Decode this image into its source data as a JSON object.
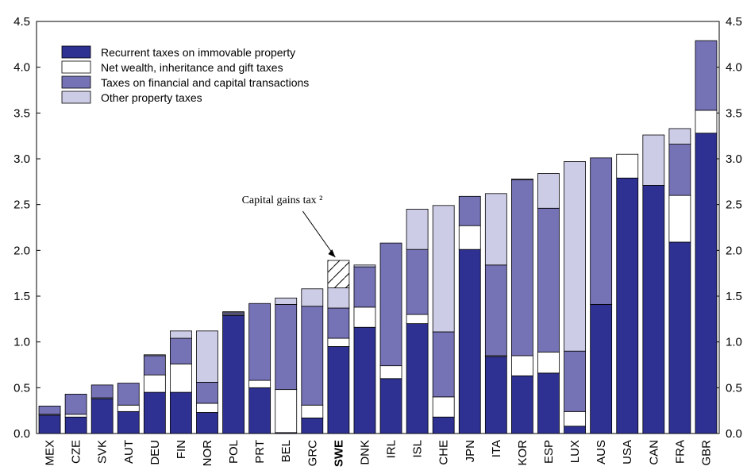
{
  "chart_data": {
    "type": "stacked_bar",
    "categories": [
      "MEX",
      "CZE",
      "SVK",
      "AUT",
      "DEU",
      "FIN",
      "NOR",
      "POL",
      "PRT",
      "BEL",
      "GRC",
      "SWE",
      "DNK",
      "IRL",
      "ISL",
      "CHE",
      "JPN",
      "ITA",
      "KOR",
      "ESP",
      "LUX",
      "AUS",
      "USA",
      "CAN",
      "FRA",
      "GBR"
    ],
    "highlight_category": "SWE",
    "series": [
      {
        "name": "Recurrent taxes on immovable property",
        "color": "#2e3192",
        "values": [
          0.2,
          0.18,
          0.38,
          0.24,
          0.45,
          0.45,
          0.23,
          1.29,
          0.5,
          0.01,
          0.17,
          0.95,
          1.16,
          0.6,
          1.2,
          0.18,
          2.01,
          0.84,
          0.63,
          0.66,
          0.08,
          1.41,
          2.79,
          2.71,
          2.09,
          3.28
        ]
      },
      {
        "name": "Net wealth, inheritance and gift taxes",
        "color": "#ffffff",
        "values": [
          0.01,
          0.03,
          0.01,
          0.07,
          0.19,
          0.31,
          0.1,
          0.01,
          0.08,
          0.47,
          0.14,
          0.09,
          0.22,
          0.14,
          0.1,
          0.22,
          0.26,
          0.01,
          0.22,
          0.23,
          0.16,
          0,
          0.26,
          0,
          0.51,
          0.25
        ]
      },
      {
        "name": "Taxes on financial and capital transactions",
        "color": "#7572b5",
        "values": [
          0.09,
          0.22,
          0.14,
          0.24,
          0.21,
          0.28,
          0.23,
          0.02,
          0.84,
          0.93,
          1.08,
          0.33,
          0.44,
          1.34,
          0.71,
          0.71,
          0.32,
          0.99,
          1.92,
          1.57,
          0.66,
          1.6,
          0,
          0,
          0.56,
          0.76
        ]
      },
      {
        "name": "Other property taxes",
        "color": "#cccce6",
        "values": [
          0,
          0,
          0,
          0,
          0.01,
          0.08,
          0.56,
          0.01,
          0,
          0.07,
          0.19,
          0.22,
          0.02,
          0,
          0.44,
          1.38,
          0,
          0.78,
          0.01,
          0.38,
          2.07,
          0,
          0,
          0.55,
          0.17,
          0
        ]
      }
    ],
    "annotation": {
      "text": "Capital gains tax ²",
      "category": "SWE",
      "value": 0.3
    },
    "ylim": [
      0,
      4.5
    ],
    "yticks": [
      {
        "value": 0,
        "label": "0.0"
      },
      {
        "value": 0.5,
        "label": "0.5"
      },
      {
        "value": 1,
        "label": "1.0"
      },
      {
        "value": 1.5,
        "label": "1.5"
      },
      {
        "value": 2,
        "label": "2.0"
      },
      {
        "value": 2.5,
        "label": "2.5"
      },
      {
        "value": 3,
        "label": "3.0"
      },
      {
        "value": 3.5,
        "label": "3.5"
      },
      {
        "value": 4,
        "label": "4.0"
      },
      {
        "value": 4.5,
        "label": "4.5"
      }
    ]
  }
}
